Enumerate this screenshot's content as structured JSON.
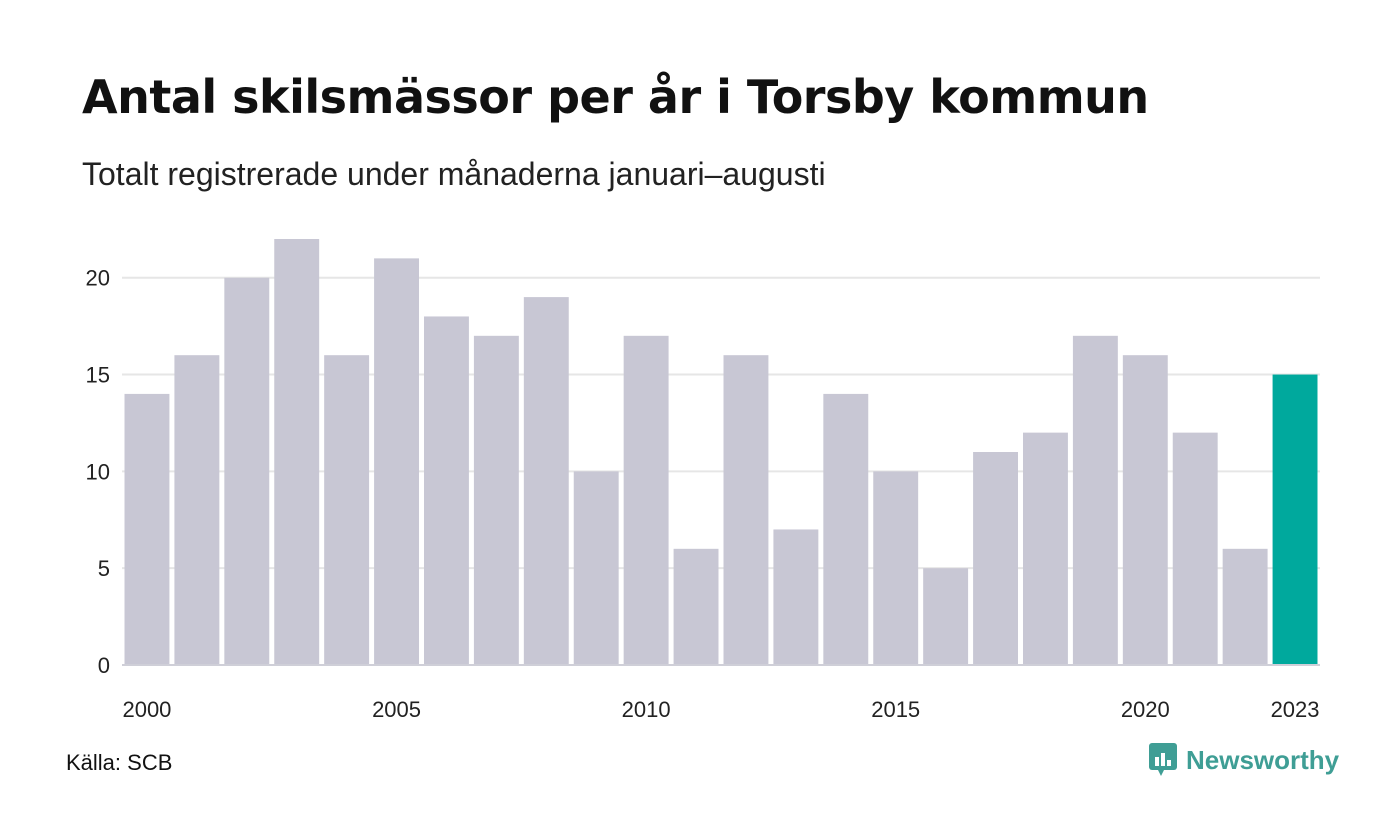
{
  "header": {
    "title": "Antal skilsmässor per år i Torsby kommun",
    "subtitle": "Totalt registrerade under månaderna januari–augusti"
  },
  "footer": {
    "source": "Källa: SCB",
    "brand": "Newsworthy"
  },
  "colors": {
    "bar": "#c8c7d4",
    "highlight": "#00a99d",
    "grid": "#e6e6e6",
    "brand": "#3f9e95"
  },
  "chart_data": {
    "type": "bar",
    "x": [
      2000,
      2001,
      2002,
      2003,
      2004,
      2005,
      2006,
      2007,
      2008,
      2009,
      2010,
      2011,
      2012,
      2013,
      2014,
      2015,
      2016,
      2017,
      2018,
      2019,
      2020,
      2021,
      2022,
      2023
    ],
    "values": [
      14,
      16,
      20,
      22,
      16,
      21,
      18,
      17,
      19,
      10,
      17,
      6,
      16,
      7,
      14,
      10,
      5,
      11,
      12,
      17,
      16,
      12,
      6,
      15
    ],
    "highlight": [
      2023
    ],
    "x_tick_labels": [
      "2000",
      "2005",
      "2010",
      "2015",
      "2020",
      "2023"
    ],
    "y_tick_labels": [
      "0",
      "5",
      "10",
      "15",
      "20"
    ],
    "ylim": [
      0,
      22
    ],
    "grid": true
  }
}
